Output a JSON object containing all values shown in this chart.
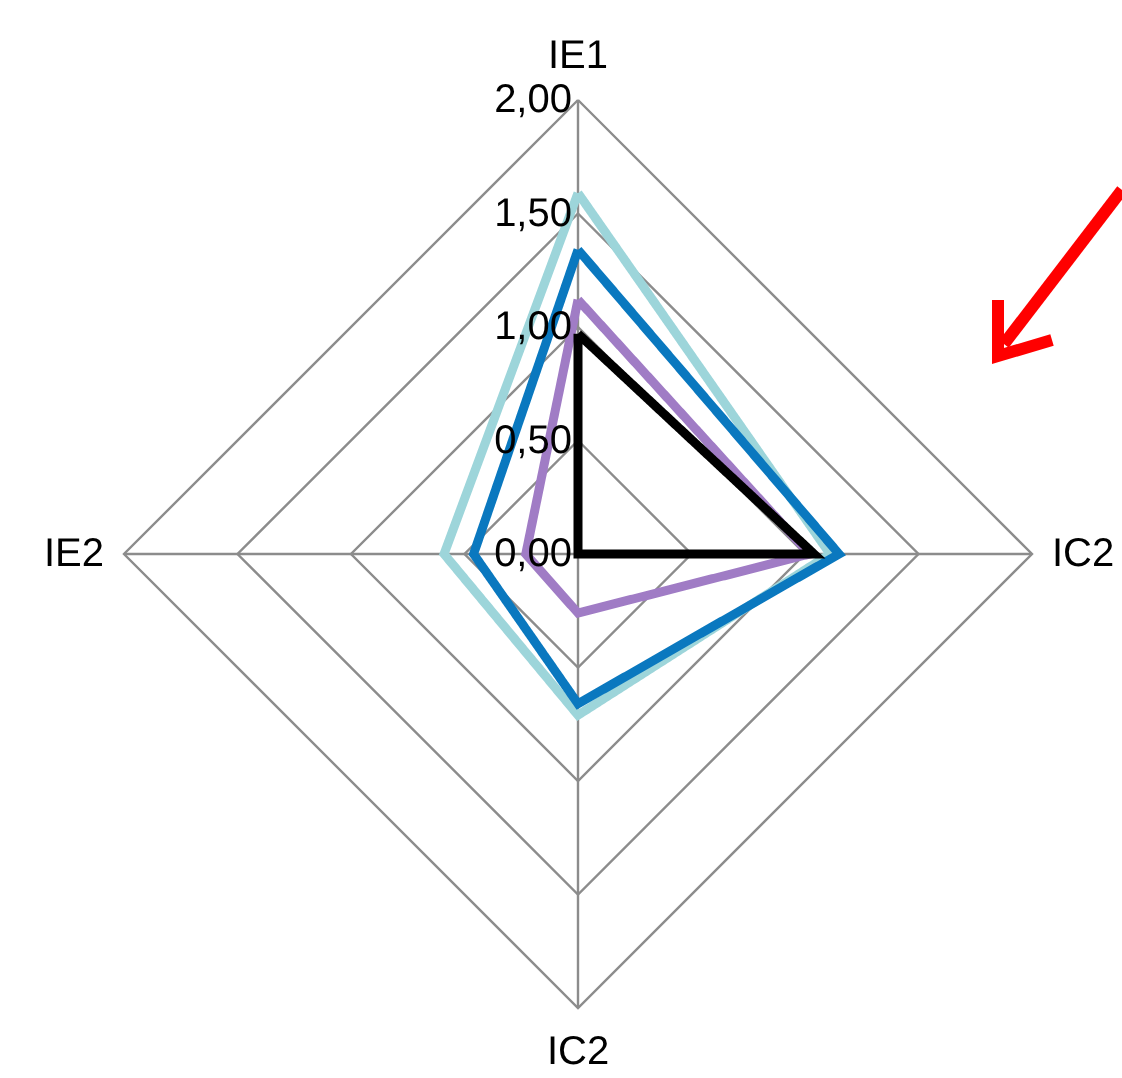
{
  "chart_data": {
    "type": "radar",
    "categories": [
      "IE1",
      "IC2",
      "IC2",
      "IE2"
    ],
    "series": [
      {
        "color": "#9dd5da",
        "values": [
          1.59,
          1.11,
          0.71,
          0.59
        ]
      },
      {
        "color": "#0a78bf",
        "values": [
          1.34,
          1.15,
          0.66,
          0.46
        ]
      },
      {
        "color": "#a07cc5",
        "values": [
          1.12,
          1.02,
          0.26,
          0.23
        ]
      },
      {
        "color": "#000000",
        "values": [
          0.97,
          1.04,
          0,
          0
        ]
      }
    ],
    "ylim": [
      0,
      2
    ],
    "yticks": [
      {
        "value": 0,
        "label": "0,00"
      },
      {
        "value": 0.5,
        "label": "0,50"
      },
      {
        "value": 1,
        "label": "1,00"
      },
      {
        "value": 1.5,
        "label": "1,50"
      },
      {
        "value": 2,
        "label": "2,00"
      }
    ],
    "grid": true,
    "legend": false
  }
}
